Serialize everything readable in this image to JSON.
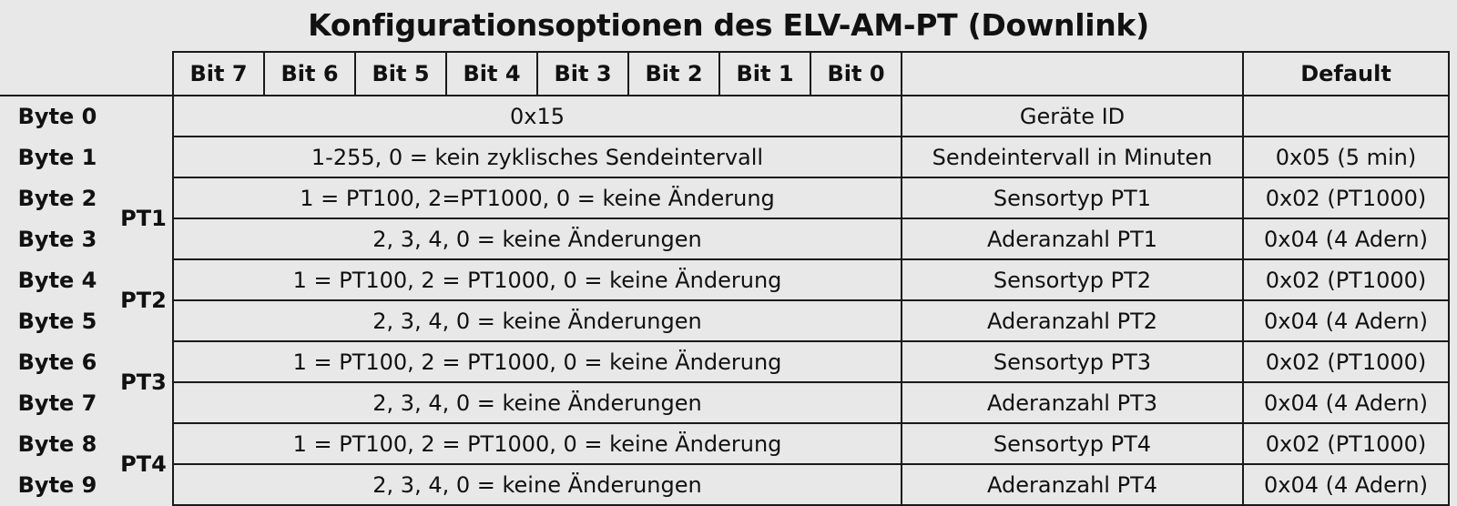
{
  "title": "Konfigurationsoptionen des ELV-AM-PT (Downlink)",
  "header": {
    "bits": [
      "Bit 7",
      "Bit 6",
      "Bit 5",
      "Bit 4",
      "Bit 3",
      "Bit 2",
      "Bit 1",
      "Bit 0"
    ],
    "description": "",
    "default": "Default"
  },
  "groups": [
    "PT1",
    "PT2",
    "PT3",
    "PT4"
  ],
  "rows": [
    {
      "byte": "Byte 0",
      "value": "0x15",
      "description": "Geräte ID",
      "default": ""
    },
    {
      "byte": "Byte 1",
      "value": "1-255, 0 = kein zyklisches Sendeintervall",
      "description": "Sendeintervall in Minuten",
      "default": "0x05 (5 min)"
    },
    {
      "byte": "Byte 2",
      "value": "1 = PT100, 2=PT1000, 0 = keine Änderung",
      "description": "Sensortyp PT1",
      "default": "0x02 (PT1000)"
    },
    {
      "byte": "Byte 3",
      "value": "2, 3, 4, 0 = keine Änderungen",
      "description": "Aderanzahl PT1",
      "default": "0x04 (4 Adern)"
    },
    {
      "byte": "Byte 4",
      "value": "1 = PT100, 2 = PT1000, 0 = keine Änderung",
      "description": "Sensortyp PT2",
      "default": "0x02 (PT1000)"
    },
    {
      "byte": "Byte 5",
      "value": "2, 3, 4, 0 = keine Änderungen",
      "description": "Aderanzahl PT2",
      "default": "0x04 (4 Adern)"
    },
    {
      "byte": "Byte 6",
      "value": "1 = PT100, 2 = PT1000, 0 = keine Änderung",
      "description": "Sensortyp PT3",
      "default": "0x02 (PT1000)"
    },
    {
      "byte": "Byte 7",
      "value": "2, 3, 4, 0 = keine Änderungen",
      "description": "Aderanzahl PT3",
      "default": "0x04 (4 Adern)"
    },
    {
      "byte": "Byte 8",
      "value": "1 = PT100, 2 = PT1000, 0 = keine Änderung",
      "description": "Sensortyp PT4",
      "default": "0x02 (PT1000)"
    },
    {
      "byte": "Byte 9",
      "value": "2, 3, 4, 0 = keine Änderungen",
      "description": "Aderanzahl PT4",
      "default": "0x04 (4 Adern)"
    }
  ]
}
